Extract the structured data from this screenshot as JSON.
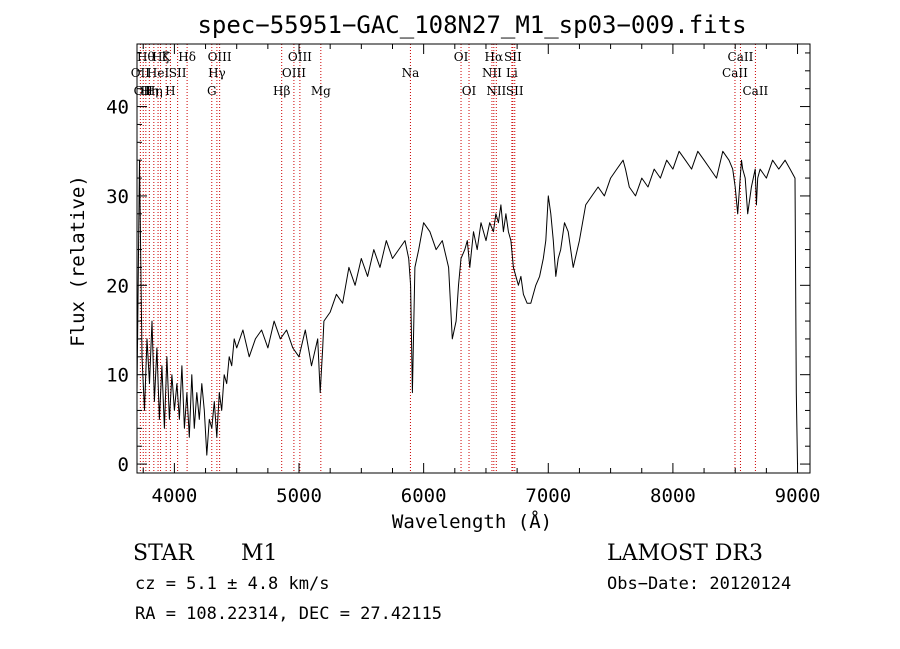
{
  "chart_data": {
    "type": "line",
    "title": "spec−55951−GAC_108N27_M1_sp03−009.fits",
    "xlabel": "Wavelength (Å)",
    "ylabel": "Flux (relative)",
    "xlim": [
      3700,
      9100
    ],
    "ylim": [
      -1,
      47
    ],
    "xticks": [
      4000,
      5000,
      6000,
      7000,
      8000,
      9000
    ],
    "yticks": [
      0,
      10,
      20,
      30,
      40
    ],
    "grid": false,
    "series": [
      {
        "x": [
          3700,
          3720,
          3740,
          3760,
          3780,
          3800,
          3820,
          3840,
          3860,
          3880,
          3900,
          3920,
          3940,
          3960,
          3980,
          4000,
          4020,
          4040,
          4060,
          4080,
          4100,
          4120,
          4140,
          4160,
          4180,
          4200,
          4220,
          4240,
          4260,
          4280,
          4300,
          4320,
          4340,
          4360,
          4380,
          4400,
          4420,
          4440,
          4460,
          4480,
          4500,
          4550,
          4600,
          4650,
          4700,
          4750,
          4800,
          4850,
          4900,
          4950,
          5000,
          5050,
          5100,
          5150,
          5170,
          5190,
          5200,
          5250,
          5300,
          5350,
          5400,
          5450,
          5500,
          5550,
          5600,
          5650,
          5700,
          5750,
          5800,
          5850,
          5880,
          5895,
          5910,
          5930,
          5960,
          6000,
          6050,
          6100,
          6150,
          6200,
          6230,
          6260,
          6280,
          6300,
          6330,
          6350,
          6370,
          6400,
          6430,
          6460,
          6500,
          6530,
          6560,
          6580,
          6600,
          6620,
          6640,
          6660,
          6680,
          6700,
          6720,
          6740,
          6760,
          6780,
          6800,
          6830,
          6860,
          6900,
          6930,
          6960,
          6980,
          7000,
          7020,
          7040,
          7060,
          7080,
          7100,
          7130,
          7160,
          7200,
          7250,
          7300,
          7350,
          7400,
          7450,
          7500,
          7550,
          7600,
          7620,
          7650,
          7700,
          7750,
          7800,
          7850,
          7900,
          7950,
          8000,
          8050,
          8100,
          8150,
          8200,
          8250,
          8300,
          8350,
          8400,
          8450,
          8480,
          8500,
          8520,
          8540,
          8550,
          8560,
          8580,
          8600,
          8630,
          8660,
          8670,
          8680,
          8700,
          8750,
          8800,
          8850,
          8900,
          8940,
          8980,
          8990,
          9000
        ],
        "y": [
          8,
          34,
          12,
          6,
          14,
          9,
          16,
          7,
          13,
          5,
          11,
          4,
          12,
          5,
          10,
          6,
          9,
          5,
          11,
          4,
          8,
          3,
          10,
          4,
          8,
          5,
          9,
          6,
          1,
          5,
          4,
          7,
          3,
          8,
          6,
          10,
          9,
          12,
          11,
          14,
          13,
          15,
          12,
          14,
          15,
          13,
          16,
          14,
          15,
          13,
          12,
          15,
          11,
          14,
          8,
          13,
          16,
          17,
          19,
          18,
          22,
          20,
          23,
          21,
          24,
          22,
          25,
          23,
          24,
          25,
          23,
          20,
          8,
          22,
          24,
          27,
          26,
          24,
          25,
          22,
          14,
          16,
          20,
          23,
          24,
          25,
          22,
          26,
          24,
          27,
          25,
          27,
          26,
          28,
          27,
          29,
          26,
          28,
          26,
          25,
          22,
          21,
          20,
          21,
          19,
          18,
          18,
          20,
          21,
          23,
          25,
          30,
          28,
          25,
          21,
          23,
          24,
          27,
          26,
          22,
          25,
          29,
          30,
          31,
          30,
          32,
          33,
          34,
          33,
          31,
          30,
          32,
          31,
          33,
          32,
          34,
          33,
          35,
          34,
          33,
          35,
          34,
          33,
          32,
          35,
          34,
          33,
          31,
          28,
          32,
          34,
          33,
          32,
          28,
          31,
          33,
          29,
          32,
          33,
          32,
          34,
          33,
          34,
          33,
          32,
          8,
          0
        ]
      }
    ],
    "line_markers": [
      {
        "lambda": 3727,
        "label": "OII",
        "row": 2
      },
      {
        "lambda": 3750,
        "label": "OII",
        "row": 3
      },
      {
        "lambda": 3771,
        "label": "Hθ",
        "row": 1
      },
      {
        "lambda": 3799,
        "label": "Hη",
        "row": 3
      },
      {
        "lambda": 3835,
        "label": "Hη",
        "row": 3
      },
      {
        "lambda": 3869,
        "label": "HeI",
        "row": 2
      },
      {
        "lambda": 3889,
        "label": "Hζ",
        "row": 1
      },
      {
        "lambda": 3934,
        "label": "K",
        "row": 1
      },
      {
        "lambda": 3968,
        "label": "H",
        "row": 3
      },
      {
        "lambda": 4026,
        "label": "SII",
        "row": 2
      },
      {
        "lambda": 4102,
        "label": "Hδ",
        "row": 1
      },
      {
        "lambda": 4300,
        "label": "G",
        "row": 3
      },
      {
        "lambda": 4341,
        "label": "Hγ",
        "row": 2
      },
      {
        "lambda": 4363,
        "label": "OIII",
        "row": 1
      },
      {
        "lambda": 4861,
        "label": "Hβ",
        "row": 3
      },
      {
        "lambda": 4959,
        "label": "OIII",
        "row": 2
      },
      {
        "lambda": 5007,
        "label": "OIII",
        "row": 1
      },
      {
        "lambda": 5175,
        "label": "Mg",
        "row": 3
      },
      {
        "lambda": 5894,
        "label": "Na",
        "row": 2
      },
      {
        "lambda": 6300,
        "label": "OI",
        "row": 1
      },
      {
        "lambda": 6364,
        "label": "OI",
        "row": 3
      },
      {
        "lambda": 6548,
        "label": "NII",
        "row": 2
      },
      {
        "lambda": 6563,
        "label": "Hα",
        "row": 1
      },
      {
        "lambda": 6583,
        "label": "NII",
        "row": 3
      },
      {
        "lambda": 6708,
        "label": "Li",
        "row": 2
      },
      {
        "lambda": 6716,
        "label": "SII",
        "row": 1
      },
      {
        "lambda": 6731,
        "label": "SII",
        "row": 3
      },
      {
        "lambda": 8498,
        "label": "CaII",
        "row": 2
      },
      {
        "lambda": 8542,
        "label": "CaII",
        "row": 1
      },
      {
        "lambda": 8662,
        "label": "CaII",
        "row": 3
      }
    ],
    "marker_color": "#cc0000"
  },
  "info": {
    "objtype": "STAR",
    "subclass": "M1",
    "survey": "LAMOST DR3",
    "cz": "cz = 5.1 ± 4.8 km/s",
    "obsdate": "Obs−Date: 20120124",
    "coords": "RA = 108.22314, DEC =  27.42115"
  }
}
